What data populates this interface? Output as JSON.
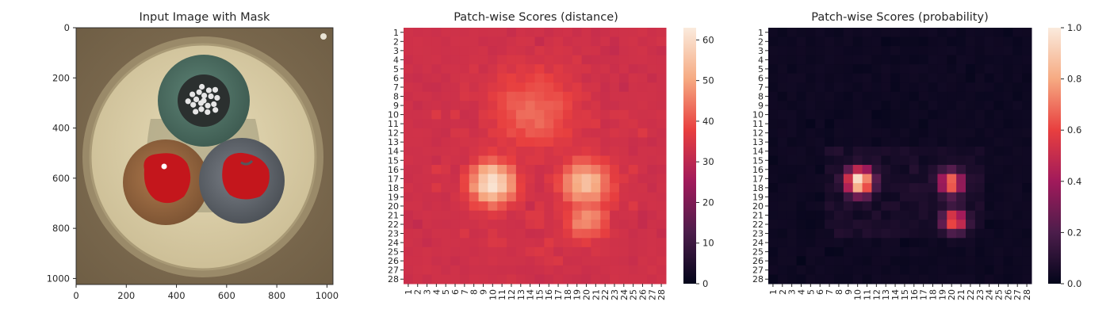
{
  "chart_data": [
    {
      "type": "image",
      "title": "Input Image with Mask",
      "xticks": [
        0,
        200,
        400,
        600,
        800,
        1000
      ],
      "yticks": [
        0,
        200,
        400,
        600,
        800,
        1000
      ],
      "xlim": [
        0,
        1024
      ],
      "ylim": [
        1024,
        0
      ]
    },
    {
      "type": "heatmap",
      "title": "Patch-wise Scores (distance)",
      "rows": 28,
      "cols": 28,
      "tick_labels": [
        "1",
        "2",
        "3",
        "4",
        "5",
        "6",
        "7",
        "8",
        "9",
        "10",
        "11",
        "12",
        "13",
        "14",
        "15",
        "16",
        "17",
        "18",
        "19",
        "20",
        "21",
        "22",
        "23",
        "24",
        "25",
        "26",
        "27",
        "28"
      ],
      "colorbar_ticks": [
        0,
        10,
        20,
        30,
        40,
        50,
        60
      ],
      "vmin": 0,
      "vmax": 63,
      "colormap": "rocket",
      "baseline": 32,
      "hotspots": [
        {
          "row": 17.5,
          "col": 10,
          "peak": 62,
          "sigma": 1.7
        },
        {
          "row": 17.5,
          "col": 20,
          "peak": 54,
          "sigma": 1.9
        },
        {
          "row": 21.5,
          "col": 20,
          "peak": 48,
          "sigma": 1.6
        },
        {
          "row": 9.5,
          "col": 14.5,
          "peak": 43,
          "sigma": 3.2
        }
      ]
    },
    {
      "type": "heatmap",
      "title": "Patch-wise Scores (probability)",
      "rows": 28,
      "cols": 28,
      "tick_labels": [
        "1",
        "2",
        "3",
        "4",
        "5",
        "6",
        "7",
        "8",
        "9",
        "10",
        "11",
        "12",
        "13",
        "14",
        "15",
        "16",
        "17",
        "18",
        "19",
        "20",
        "21",
        "22",
        "23",
        "24",
        "25",
        "26",
        "27",
        "28"
      ],
      "colorbar_ticks": [
        0.0,
        0.2,
        0.4,
        0.6,
        0.8,
        1.0
      ],
      "vmin": 0,
      "vmax": 1,
      "colormap": "rocket",
      "hotspots": [
        {
          "row": 17.3,
          "col": 10.2,
          "peak": 1.0,
          "sigma": 1.05
        },
        {
          "row": 17.5,
          "col": 20,
          "peak": 0.72,
          "sigma": 0.95
        },
        {
          "row": 21.6,
          "col": 20.3,
          "peak": 0.68,
          "sigma": 0.9
        }
      ]
    }
  ],
  "colors": {
    "mask": "#c4161c",
    "background_frame": "#7d6a4d",
    "axis": "#262626"
  }
}
